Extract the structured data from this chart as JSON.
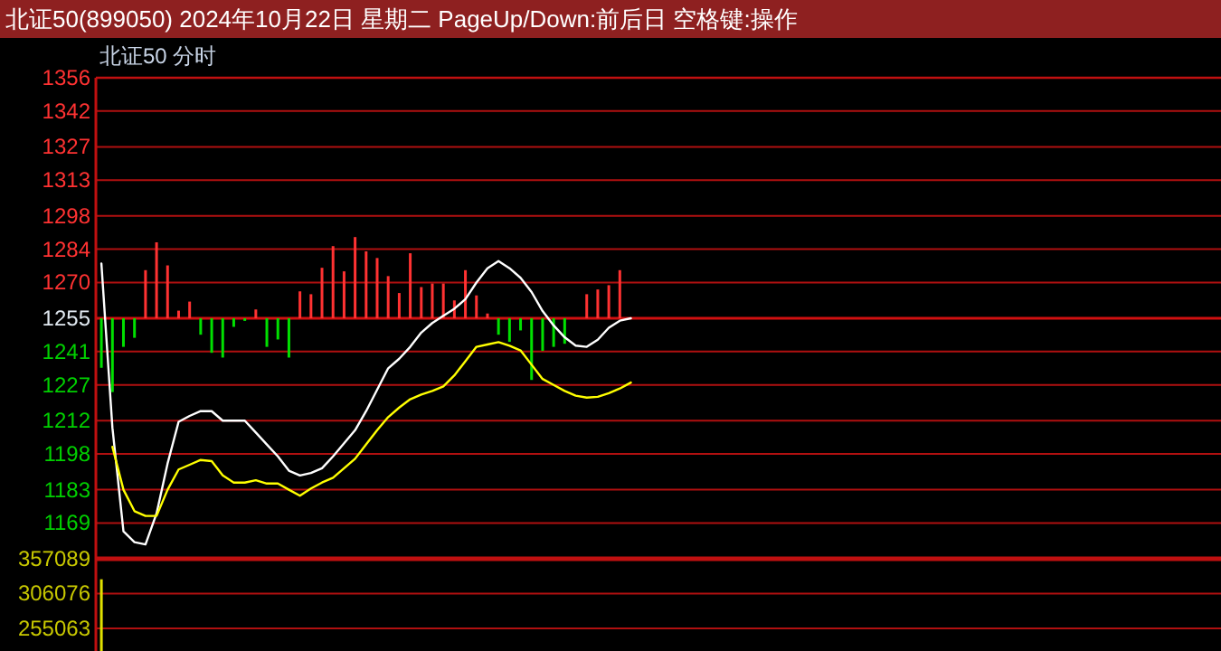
{
  "chart_data": [
    {
      "type": "line",
      "title": "北证50(899050)  2024年10月22日 星期二 PageUp/Down:前后日 空格键:操作",
      "subtitle": "北证50   分时",
      "categories": [
        null,
        null,
        null,
        null,
        null,
        null,
        null,
        null,
        null,
        null,
        null,
        null,
        null,
        null,
        null,
        null,
        null,
        null,
        null,
        null,
        null,
        null,
        null,
        null,
        null,
        null,
        null,
        null,
        null,
        null,
        null,
        null,
        null,
        null,
        null,
        null,
        null,
        null,
        null,
        null,
        null,
        null,
        null,
        null,
        null,
        null,
        null,
        null,
        null,
        null,
        null,
        null,
        null,
        null,
        null,
        null,
        null,
        null,
        null,
        null,
        null,
        null,
        null,
        null,
        null,
        null,
        null,
        null,
        null,
        null,
        null,
        null,
        null,
        null,
        null,
        null,
        null,
        null,
        null,
        null,
        null,
        null,
        null,
        null,
        null,
        null,
        null,
        null,
        null,
        null,
        null,
        null,
        null,
        null,
        null,
        null,
        null,
        null,
        null,
        null,
        null,
        null
      ],
      "ylim": [
        1154,
        1356
      ],
      "yticks": [
        1356,
        1342,
        1327,
        1313,
        1298,
        1284,
        1270,
        1255,
        1241,
        1227,
        1212,
        1198,
        1183,
        1169
      ],
      "tick_labels": "y",
      "grid": "y",
      "ref_lines": [
        {
          "axis": "y",
          "value": 1255,
          "color": "#d01010"
        }
      ],
      "series": [
        {
          "type": "bar",
          "colors": [
            "#00e000",
            "#00e000",
            "#00e000",
            "#00e000",
            "#ff3232",
            "#ff3232",
            "#ff3232",
            "#ff3232",
            "#ff3232",
            "#00e000",
            "#00e000",
            "#00e000",
            "#00e000",
            "#00e000",
            "#ff3232",
            "#00e000",
            "#00e000",
            "#00e000",
            "#ff3232",
            "#ff3232",
            "#ff3232",
            "#ff3232",
            "#ff3232",
            "#ff3232",
            "#ff3232",
            "#ff3232",
            "#ff3232",
            "#ff3232",
            "#ff3232",
            "#ff3232",
            "#ff3232",
            "#ff3232",
            "#ff3232",
            "#ff3232",
            "#ff3232",
            "#ff3232",
            "#00e000",
            "#00e000",
            "#00e000",
            "#00e000",
            "#00e000",
            "#00e000",
            "#00e000",
            null,
            "#ff3232",
            "#ff3232",
            "#ff3232",
            "#ff3232",
            null,
            null,
            null,
            null,
            null,
            null,
            null,
            null,
            null,
            null,
            null,
            null,
            null,
            null,
            null,
            null,
            null,
            null,
            null,
            null,
            null,
            null,
            null,
            null,
            null,
            null,
            null,
            null,
            null,
            null,
            null,
            null,
            null,
            null,
            null,
            null,
            null,
            null,
            null,
            null,
            null,
            null,
            null,
            null,
            null,
            null,
            null,
            null,
            null,
            null,
            null,
            null,
            null,
            null
          ],
          "base": [
            1255,
            1255,
            1255,
            1255,
            1255,
            1255,
            1255,
            1255,
            1255,
            1255,
            1255,
            1255,
            1255,
            1255,
            1255,
            1255,
            1255,
            1255,
            1255,
            1255,
            1255,
            1255,
            1255,
            1255,
            1255,
            1255,
            1255,
            1255,
            1255,
            1255,
            1255,
            1255,
            1255,
            1255,
            1255,
            1255,
            1255,
            1255,
            1255,
            1255,
            1255,
            1255,
            1255,
            null,
            1255,
            1255,
            1255,
            1255,
            null,
            null,
            null,
            null,
            null,
            null,
            null,
            null,
            null,
            null,
            null,
            null,
            null,
            null,
            null,
            null,
            null,
            null,
            null,
            null,
            null,
            null,
            null,
            null,
            null,
            null,
            null,
            null,
            null,
            null,
            null,
            null,
            null,
            null,
            null,
            null,
            null,
            null,
            null,
            null,
            null,
            null,
            null,
            null,
            null,
            null,
            null,
            null,
            null,
            null,
            null,
            null,
            null,
            null
          ],
          "values": [
            -20.8,
            -31,
            -12,
            -8.2,
            20.2,
            31.9,
            22.2,
            3.2,
            7,
            -6.9,
            -14.5,
            -16.5,
            -3.6,
            -1.1,
            3.7,
            -12,
            -8.9,
            -16.5,
            11.3,
            10.1,
            21.2,
            30.3,
            19.7,
            34.1,
            28.1,
            25.3,
            17.7,
            10.6,
            27.3,
            13.1,
            14.6,
            14.6,
            7.5,
            20.2,
            9.6,
            2,
            -6.9,
            -9.9,
            -5.1,
            -25.9,
            -13.7,
            -12,
            -10.7,
            null,
            10.1,
            12.1,
            13.9,
            20.2,
            null,
            null,
            null,
            null,
            null,
            null,
            null,
            null,
            null,
            null,
            null,
            null,
            null,
            null,
            null,
            null,
            null,
            null,
            null,
            null,
            null,
            null,
            null,
            null,
            null,
            null,
            null,
            null,
            null,
            null,
            null,
            null,
            null,
            null,
            null,
            null,
            null,
            null,
            null,
            null,
            null,
            null,
            null,
            null,
            null,
            null,
            null,
            null,
            null,
            null,
            null,
            null,
            null,
            null
          ]
        },
        {
          "type": "line",
          "color": "#ffffff",
          "values": [
            1278,
            1209,
            1165.5,
            1161,
            1160,
            1173,
            1194,
            1211.5,
            1214,
            1216,
            1216,
            1212,
            1212,
            1212,
            1207,
            1202,
            1197,
            1191,
            1189,
            1190,
            1192,
            1197,
            1202.5,
            1208,
            1216,
            1225,
            1234,
            1238,
            1243,
            1249,
            1253,
            1256,
            1259,
            1263,
            1270,
            1276,
            1279,
            1276,
            1272,
            1266,
            1258,
            1252,
            1247,
            1243.5,
            1243,
            1246,
            1251,
            1254,
            1255,
            null,
            null,
            null,
            null,
            null,
            null,
            null,
            null,
            null,
            null,
            null,
            null,
            null,
            null,
            null,
            null,
            null,
            null,
            null,
            null,
            null,
            null,
            null,
            null,
            null,
            null,
            null,
            null,
            null,
            null,
            null,
            null,
            null,
            null,
            null,
            null,
            null,
            null,
            null,
            null,
            null,
            null,
            null,
            null,
            null,
            null,
            null,
            null,
            null,
            null,
            null,
            null,
            null
          ]
        },
        {
          "type": "line",
          "color": "#ffff00",
          "values": [
            null,
            1201,
            1183,
            1174,
            1172,
            1172,
            1183,
            1191.5,
            1193.5,
            1195.5,
            1195,
            1189,
            1186,
            1186,
            1187,
            1185.6,
            1185.6,
            1183,
            1180.5,
            1183.5,
            1186,
            1188,
            1192,
            1196,
            1202,
            1208,
            1213.5,
            1217.5,
            1221,
            1223,
            1224.5,
            1226.4,
            1231,
            1237,
            1243,
            1244,
            1245,
            1243.5,
            1241.5,
            1235.5,
            1229.5,
            1227,
            1224.5,
            1222.5,
            1221.7,
            1222,
            1223.5,
            1225.5,
            1228,
            null,
            null,
            null,
            null,
            null,
            null,
            null,
            null,
            null,
            null,
            null,
            null,
            null,
            null,
            null,
            null,
            null,
            null,
            null,
            null,
            null,
            null,
            null,
            null,
            null,
            null,
            null,
            null,
            null,
            null,
            null,
            null,
            null,
            null,
            null,
            null,
            null,
            null,
            null,
            null,
            null,
            null,
            null,
            null,
            null,
            null,
            null,
            null,
            null,
            null,
            null,
            null,
            null
          ]
        }
      ]
    },
    {
      "type": "bar",
      "categories": [
        null,
        null,
        null,
        null,
        null,
        null,
        null,
        null,
        null,
        null,
        null,
        null,
        null,
        null,
        null,
        null,
        null,
        null,
        null,
        null,
        null,
        null,
        null,
        null,
        null,
        null,
        null,
        null,
        null,
        null,
        null,
        null,
        null,
        null,
        null,
        null,
        null,
        null,
        null,
        null,
        null,
        null,
        null,
        null,
        null,
        null,
        null,
        null,
        null,
        null,
        null,
        null,
        null,
        null,
        null,
        null,
        null,
        null,
        null,
        null,
        null,
        null,
        null,
        null,
        null,
        null,
        null,
        null,
        null,
        null,
        null,
        null,
        null,
        null,
        null,
        null,
        null,
        null,
        null,
        null,
        null,
        null,
        null,
        null,
        null,
        null,
        null,
        null,
        null,
        null,
        null,
        null,
        null,
        null,
        null,
        null,
        null,
        null,
        null,
        null,
        null,
        null
      ],
      "ylim": [
        216446,
        357089
      ],
      "yticks": [
        357089,
        306076,
        255063
      ],
      "tick_labels": "y",
      "grid": "y",
      "series": [
        {
          "color": "#e0e000",
          "values": [
            327000,
            null,
            null,
            null,
            null,
            null,
            null,
            null,
            null,
            null,
            null,
            null,
            null,
            null,
            null,
            null,
            null,
            null,
            null,
            null,
            null,
            null,
            null,
            null,
            null,
            null,
            null,
            null,
            null,
            null,
            null,
            null,
            null,
            null,
            null,
            null,
            null,
            null,
            null,
            null,
            null,
            null,
            null,
            null,
            null,
            null,
            null,
            null,
            null,
            null,
            null,
            null,
            null,
            null,
            null,
            null,
            null,
            null,
            null,
            null,
            null,
            null,
            null,
            null,
            null,
            null,
            null,
            null,
            null,
            null,
            null,
            null,
            null,
            null,
            null,
            null,
            null,
            null,
            null,
            null,
            null,
            null,
            null,
            null,
            null,
            null,
            null,
            null,
            null,
            null,
            null,
            null,
            null,
            null,
            null,
            null,
            null,
            null,
            null,
            null,
            null,
            null
          ]
        }
      ]
    }
  ]
}
